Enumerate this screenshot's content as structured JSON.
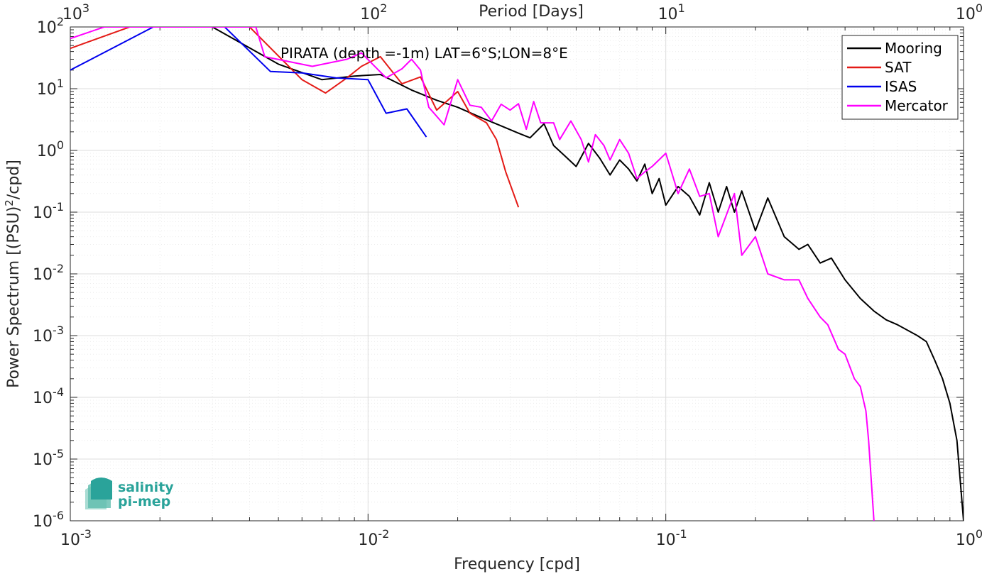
{
  "chart_data": {
    "type": "line",
    "title": "",
    "annotation": "PIRATA (depth =-1m) LAT=6°S;LON=8°E",
    "xlabel": "Frequency [cpd]",
    "ylabel": "Power Spectrum [(PSU)²/cpd]",
    "top_xlabel": "Period [Days]",
    "xscale": "log",
    "yscale": "log",
    "xlim": [
      0.001,
      1
    ],
    "ylim": [
      1e-06,
      100
    ],
    "grid": true,
    "legend_position": "top-right",
    "x_tick_labels": [
      {
        "value": 0.001,
        "base": "10",
        "exp": "-3"
      },
      {
        "value": 0.01,
        "base": "10",
        "exp": "-2"
      },
      {
        "value": 0.1,
        "base": "10",
        "exp": "-1"
      },
      {
        "value": 1,
        "base": "10",
        "exp": "0"
      }
    ],
    "top_tick_labels": [
      {
        "value": 0.001,
        "base": "10",
        "exp": "3"
      },
      {
        "value": 0.01,
        "base": "10",
        "exp": "2"
      },
      {
        "value": 0.1,
        "base": "10",
        "exp": "1"
      },
      {
        "value": 1,
        "base": "10",
        "exp": "0"
      }
    ],
    "y_tick_labels": [
      {
        "value": 100,
        "base": "10",
        "exp": "2"
      },
      {
        "value": 10,
        "base": "10",
        "exp": "1"
      },
      {
        "value": 1,
        "base": "10",
        "exp": "0"
      },
      {
        "value": 0.1,
        "base": "10",
        "exp": "-1"
      },
      {
        "value": 0.01,
        "base": "10",
        "exp": "-2"
      },
      {
        "value": 0.001,
        "base": "10",
        "exp": "-3"
      },
      {
        "value": 0.0001,
        "base": "10",
        "exp": "-4"
      },
      {
        "value": 1e-05,
        "base": "10",
        "exp": "-5"
      },
      {
        "value": 1e-06,
        "base": "10",
        "exp": "-6"
      }
    ],
    "series": [
      {
        "name": "Mooring",
        "color": "#000000",
        "points": [
          [
            0.001,
            1500
          ],
          [
            0.003,
            100
          ],
          [
            0.005,
            25
          ],
          [
            0.007,
            14
          ],
          [
            0.009,
            16
          ],
          [
            0.011,
            17
          ],
          [
            0.014,
            9.5
          ],
          [
            0.017,
            6.5
          ],
          [
            0.02,
            5
          ],
          [
            0.024,
            3.4
          ],
          [
            0.028,
            2.5
          ],
          [
            0.032,
            1.9
          ],
          [
            0.035,
            1.6
          ],
          [
            0.039,
            2.7
          ],
          [
            0.042,
            1.2
          ],
          [
            0.046,
            0.8
          ],
          [
            0.05,
            0.55
          ],
          [
            0.055,
            1.3
          ],
          [
            0.06,
            0.75
          ],
          [
            0.065,
            0.4
          ],
          [
            0.07,
            0.7
          ],
          [
            0.075,
            0.5
          ],
          [
            0.08,
            0.32
          ],
          [
            0.085,
            0.6
          ],
          [
            0.09,
            0.2
          ],
          [
            0.095,
            0.35
          ],
          [
            0.1,
            0.13
          ],
          [
            0.11,
            0.26
          ],
          [
            0.12,
            0.18
          ],
          [
            0.13,
            0.09
          ],
          [
            0.14,
            0.3
          ],
          [
            0.15,
            0.1
          ],
          [
            0.16,
            0.26
          ],
          [
            0.17,
            0.1
          ],
          [
            0.18,
            0.22
          ],
          [
            0.2,
            0.05
          ],
          [
            0.22,
            0.17
          ],
          [
            0.25,
            0.04
          ],
          [
            0.28,
            0.025
          ],
          [
            0.3,
            0.03
          ],
          [
            0.33,
            0.015
          ],
          [
            0.36,
            0.018
          ],
          [
            0.4,
            0.008
          ],
          [
            0.45,
            0.004
          ],
          [
            0.5,
            0.0025
          ],
          [
            0.55,
            0.0018
          ],
          [
            0.6,
            0.0015
          ],
          [
            0.7,
            0.001
          ],
          [
            0.75,
            0.0008
          ],
          [
            0.8,
            0.0004
          ],
          [
            0.85,
            0.0002
          ],
          [
            0.9,
            8e-05
          ],
          [
            0.95,
            2e-05
          ],
          [
            1.0,
            1e-06
          ]
        ]
      },
      {
        "name": "SAT",
        "color": "#e41b17",
        "points": [
          [
            0.001,
            45
          ],
          [
            0.002,
            150
          ],
          [
            0.004,
            100
          ],
          [
            0.006,
            14
          ],
          [
            0.0072,
            8.5
          ],
          [
            0.0085,
            15
          ],
          [
            0.0095,
            23
          ],
          [
            0.011,
            33
          ],
          [
            0.013,
            12
          ],
          [
            0.015,
            15.5
          ],
          [
            0.017,
            4.5
          ],
          [
            0.02,
            9
          ],
          [
            0.022,
            4
          ],
          [
            0.025,
            2.8
          ],
          [
            0.027,
            1.5
          ],
          [
            0.029,
            0.45
          ],
          [
            0.032,
            0.12
          ]
        ]
      },
      {
        "name": "ISAS",
        "color": "#0000ee",
        "points": [
          [
            0.001,
            20
          ],
          [
            0.0019,
            100
          ],
          [
            0.0033,
            100
          ],
          [
            0.0047,
            19
          ],
          [
            0.006,
            18
          ],
          [
            0.0078,
            15
          ],
          [
            0.01,
            14
          ],
          [
            0.0115,
            4
          ],
          [
            0.0135,
            4.7
          ],
          [
            0.0157,
            1.65
          ]
        ]
      },
      {
        "name": "Mercator",
        "color": "#ff00ff",
        "points": [
          [
            0.001,
            65
          ],
          [
            0.0013,
            100
          ],
          [
            0.0042,
            100
          ],
          [
            0.0045,
            33
          ],
          [
            0.0065,
            23
          ],
          [
            0.0085,
            30
          ],
          [
            0.0095,
            38
          ],
          [
            0.0115,
            15
          ],
          [
            0.013,
            21
          ],
          [
            0.014,
            30
          ],
          [
            0.015,
            20
          ],
          [
            0.016,
            5
          ],
          [
            0.018,
            2.6
          ],
          [
            0.02,
            14
          ],
          [
            0.022,
            5.4
          ],
          [
            0.024,
            5
          ],
          [
            0.026,
            3
          ],
          [
            0.028,
            5.6
          ],
          [
            0.03,
            4.5
          ],
          [
            0.032,
            5.7
          ],
          [
            0.034,
            2.2
          ],
          [
            0.036,
            6.2
          ],
          [
            0.038,
            2.8
          ],
          [
            0.042,
            2.8
          ],
          [
            0.044,
            1.5
          ],
          [
            0.048,
            3
          ],
          [
            0.052,
            1.5
          ],
          [
            0.055,
            0.65
          ],
          [
            0.058,
            1.8
          ],
          [
            0.062,
            1.2
          ],
          [
            0.065,
            0.7
          ],
          [
            0.07,
            1.5
          ],
          [
            0.075,
            0.9
          ],
          [
            0.08,
            0.35
          ],
          [
            0.085,
            0.45
          ],
          [
            0.09,
            0.55
          ],
          [
            0.1,
            0.9
          ],
          [
            0.11,
            0.2
          ],
          [
            0.12,
            0.5
          ],
          [
            0.13,
            0.18
          ],
          [
            0.14,
            0.2
          ],
          [
            0.15,
            0.04
          ],
          [
            0.17,
            0.2
          ],
          [
            0.18,
            0.02
          ],
          [
            0.2,
            0.04
          ],
          [
            0.22,
            0.01
          ],
          [
            0.25,
            0.008
          ],
          [
            0.28,
            0.008
          ],
          [
            0.3,
            0.004
          ],
          [
            0.33,
            0.002
          ],
          [
            0.35,
            0.0015
          ],
          [
            0.38,
            0.0006
          ],
          [
            0.4,
            0.0005
          ],
          [
            0.43,
            0.0002
          ],
          [
            0.45,
            0.00015
          ],
          [
            0.47,
            6e-05
          ],
          [
            0.48,
            2e-05
          ],
          [
            0.5,
            1e-06
          ]
        ]
      }
    ]
  },
  "logo": {
    "line1": "salinity",
    "line2": "pi-mep"
  }
}
